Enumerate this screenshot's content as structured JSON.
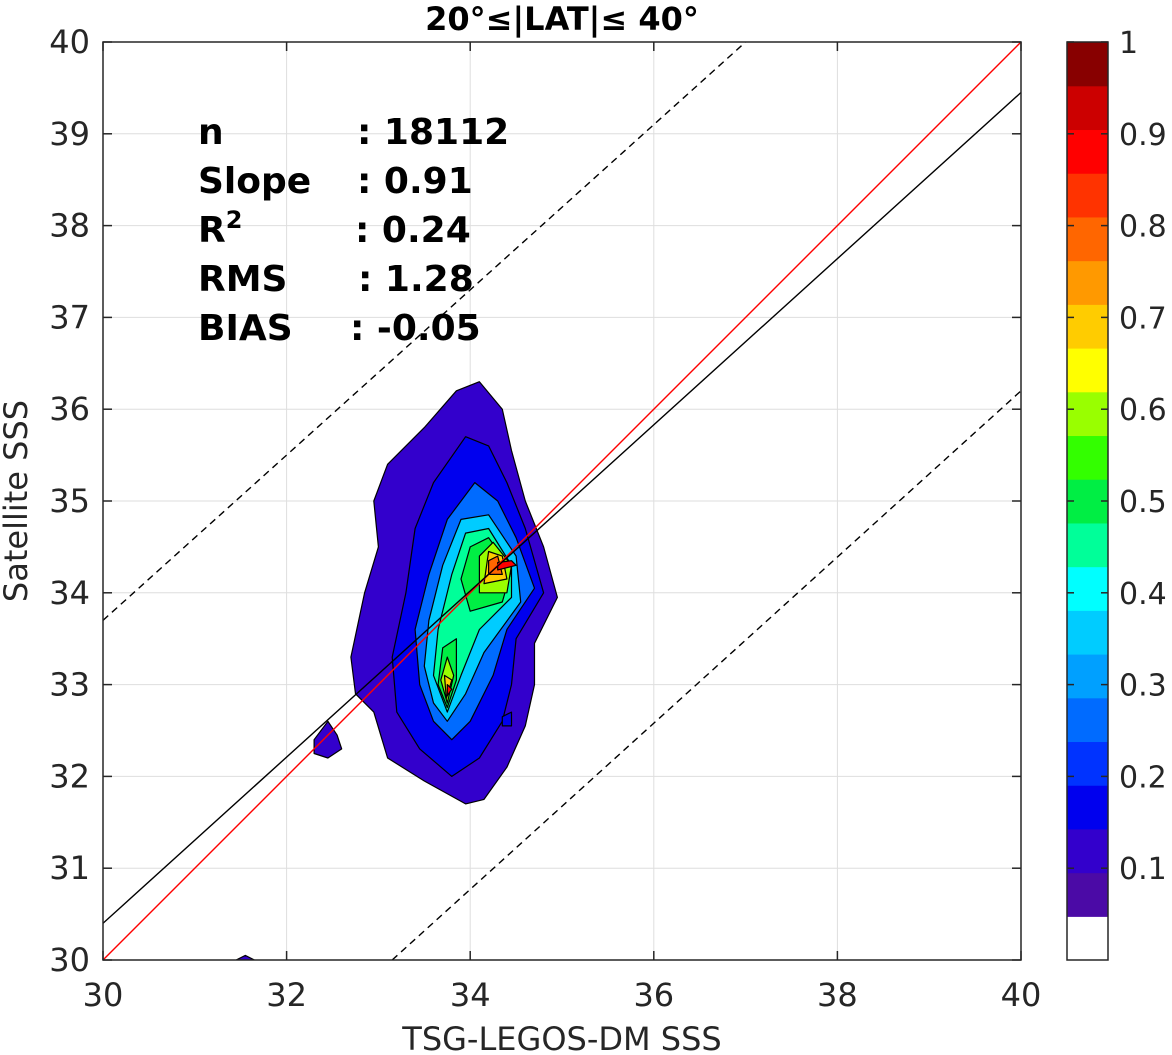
{
  "chart_data": {
    "type": "heatmap",
    "subtype": "filled-contour density scatter",
    "title": "20°≤|LAT|≤ 40°",
    "xlabel": "TSG-LEGOS-DM SSS",
    "ylabel": "Satellite SSS",
    "xlim": [
      30,
      40
    ],
    "ylim": [
      30,
      40
    ],
    "xticks": [
      30,
      32,
      34,
      36,
      38,
      40
    ],
    "yticks": [
      30,
      31,
      32,
      33,
      34,
      35,
      36,
      37,
      38,
      39,
      40
    ],
    "grid": true,
    "stats": [
      {
        "label": "n",
        "value": ": 18112"
      },
      {
        "label": "Slope",
        "value": ": 0.91"
      },
      {
        "label": "R",
        "sup": "2",
        "value": ": 0.24"
      },
      {
        "label": "RMS",
        "value": ": 1.28"
      },
      {
        "label": "BIAS",
        "value": ": -0.05"
      }
    ],
    "lines": [
      {
        "name": "1:1",
        "color": "#ff0000",
        "style": "solid",
        "points": [
          [
            30,
            30
          ],
          [
            40,
            40
          ]
        ]
      },
      {
        "name": "fit",
        "color": "#000000",
        "style": "solid",
        "points": [
          [
            30,
            30.4
          ],
          [
            40,
            39.45
          ]
        ]
      },
      {
        "name": "upper",
        "color": "#000000",
        "style": "dashed",
        "points": [
          [
            30,
            33.7
          ],
          [
            37,
            40
          ]
        ]
      },
      {
        "name": "lower",
        "color": "#000000",
        "style": "dashed",
        "points": [
          [
            33.15,
            30
          ],
          [
            40,
            36.2
          ]
        ]
      }
    ],
    "colorbar": {
      "range": [
        0,
        1
      ],
      "levels": 18,
      "tick_values": [
        0.1,
        0.2,
        0.3,
        0.4,
        0.5,
        0.6,
        0.7,
        0.8,
        0.9,
        1
      ],
      "tick_labels": [
        "0.1",
        "0.2",
        "0.3",
        "0.4",
        "0.5",
        "0.6",
        "0.7",
        "0.8",
        "0.9",
        "1"
      ],
      "colors": [
        "#ffffff",
        "#4b0aa6",
        "#3300cc",
        "#0000ee",
        "#0033ff",
        "#006bff",
        "#00a0ff",
        "#00ccff",
        "#00ffff",
        "#00ff99",
        "#00ee44",
        "#33ff00",
        "#99ff00",
        "#ffff00",
        "#ffcc00",
        "#ff9900",
        "#ff6600",
        "#ff3300",
        "#ff0000",
        "#cc0000",
        "#880000"
      ]
    },
    "density_regions": [
      {
        "level": 0.08,
        "points": [
          [
            33.95,
            31.7
          ],
          [
            34.15,
            31.75
          ],
          [
            34.4,
            32.1
          ],
          [
            34.6,
            32.55
          ],
          [
            34.7,
            33.0
          ],
          [
            34.7,
            33.45
          ],
          [
            34.95,
            33.95
          ],
          [
            34.8,
            34.5
          ],
          [
            34.6,
            35.0
          ],
          [
            34.45,
            35.55
          ],
          [
            34.35,
            36.0
          ],
          [
            34.1,
            36.3
          ],
          [
            33.85,
            36.2
          ],
          [
            33.5,
            35.8
          ],
          [
            33.1,
            35.4
          ],
          [
            32.95,
            35.0
          ],
          [
            33.0,
            34.5
          ],
          [
            32.85,
            34.0
          ],
          [
            32.7,
            33.3
          ],
          [
            32.75,
            32.9
          ],
          [
            32.95,
            32.7
          ],
          [
            33.1,
            32.2
          ],
          [
            33.5,
            31.95
          ]
        ]
      },
      {
        "level": 0.08,
        "points": [
          [
            32.3,
            32.4
          ],
          [
            32.45,
            32.6
          ],
          [
            32.55,
            32.45
          ],
          [
            32.6,
            32.3
          ],
          [
            32.45,
            32.2
          ],
          [
            32.3,
            32.25
          ]
        ]
      },
      {
        "level": 0.08,
        "points": [
          [
            31.45,
            30.0
          ],
          [
            31.55,
            30.05
          ],
          [
            31.65,
            30.0
          ]
        ]
      },
      {
        "level": 0.15,
        "points": [
          [
            33.8,
            32.0
          ],
          [
            34.1,
            32.2
          ],
          [
            34.35,
            32.6
          ],
          [
            34.45,
            33.0
          ],
          [
            34.5,
            33.5
          ],
          [
            34.8,
            34.0
          ],
          [
            34.6,
            34.7
          ],
          [
            34.4,
            35.2
          ],
          [
            34.2,
            35.6
          ],
          [
            33.95,
            35.7
          ],
          [
            33.6,
            35.2
          ],
          [
            33.4,
            34.7
          ],
          [
            33.3,
            34.0
          ],
          [
            33.15,
            33.3
          ],
          [
            33.2,
            32.7
          ],
          [
            33.45,
            32.3
          ]
        ]
      },
      {
        "level": 0.15,
        "points": [
          [
            34.35,
            32.65
          ],
          [
            34.45,
            32.7
          ],
          [
            34.45,
            32.55
          ],
          [
            34.35,
            32.55
          ]
        ]
      },
      {
        "level": 0.25,
        "points": [
          [
            33.8,
            32.4
          ],
          [
            34.0,
            32.6
          ],
          [
            34.25,
            33.1
          ],
          [
            34.4,
            33.6
          ],
          [
            34.7,
            34.05
          ],
          [
            34.5,
            34.6
          ],
          [
            34.3,
            35.0
          ],
          [
            34.05,
            35.2
          ],
          [
            33.75,
            34.8
          ],
          [
            33.55,
            34.2
          ],
          [
            33.4,
            33.6
          ],
          [
            33.45,
            33.0
          ],
          [
            33.6,
            32.6
          ]
        ]
      },
      {
        "level": 0.35,
        "points": [
          [
            33.75,
            32.6
          ],
          [
            33.95,
            32.9
          ],
          [
            34.15,
            33.35
          ],
          [
            34.55,
            33.9
          ],
          [
            34.5,
            34.4
          ],
          [
            34.2,
            34.85
          ],
          [
            33.9,
            34.8
          ],
          [
            33.7,
            34.3
          ],
          [
            33.55,
            33.7
          ],
          [
            33.5,
            33.2
          ],
          [
            33.6,
            32.8
          ]
        ]
      },
      {
        "level": 0.45,
        "points": [
          [
            33.75,
            32.7
          ],
          [
            33.9,
            33.1
          ],
          [
            34.1,
            33.6
          ],
          [
            34.45,
            33.95
          ],
          [
            34.45,
            34.3
          ],
          [
            34.2,
            34.7
          ],
          [
            33.95,
            34.65
          ],
          [
            33.8,
            34.2
          ],
          [
            33.65,
            33.6
          ],
          [
            33.6,
            33.1
          ]
        ]
      },
      {
        "level": 0.55,
        "points": [
          [
            34.0,
            33.8
          ],
          [
            34.35,
            33.9
          ],
          [
            34.45,
            34.25
          ],
          [
            34.2,
            34.6
          ],
          [
            34.0,
            34.5
          ],
          [
            33.9,
            34.15
          ]
        ]
      },
      {
        "level": 0.55,
        "points": [
          [
            33.75,
            32.75
          ],
          [
            33.85,
            33.05
          ],
          [
            33.85,
            33.5
          ],
          [
            33.7,
            33.4
          ],
          [
            33.65,
            33.0
          ]
        ]
      },
      {
        "level": 0.65,
        "points": [
          [
            34.1,
            34.0
          ],
          [
            34.4,
            34.0
          ],
          [
            34.45,
            34.3
          ],
          [
            34.25,
            34.55
          ],
          [
            34.1,
            34.4
          ]
        ]
      },
      {
        "level": 0.65,
        "points": [
          [
            33.75,
            32.8
          ],
          [
            33.82,
            33.1
          ],
          [
            33.75,
            33.3
          ],
          [
            33.68,
            33.05
          ]
        ]
      },
      {
        "level": 0.75,
        "points": [
          [
            34.15,
            34.1
          ],
          [
            34.4,
            34.15
          ],
          [
            34.35,
            34.4
          ],
          [
            34.2,
            34.45
          ]
        ]
      },
      {
        "level": 0.75,
        "points": [
          [
            33.74,
            32.85
          ],
          [
            33.8,
            33.05
          ],
          [
            33.72,
            33.1
          ]
        ]
      },
      {
        "level": 0.85,
        "points": [
          [
            34.2,
            34.2
          ],
          [
            34.35,
            34.2
          ],
          [
            34.3,
            34.4
          ],
          [
            34.2,
            34.35
          ]
        ]
      },
      {
        "level": 0.95,
        "points": [
          [
            34.3,
            34.25
          ],
          [
            34.5,
            34.3
          ],
          [
            34.45,
            34.35
          ],
          [
            34.3,
            34.33
          ]
        ]
      },
      {
        "level": 0.95,
        "points": [
          [
            33.75,
            32.88
          ],
          [
            33.8,
            32.95
          ],
          [
            33.75,
            33.0
          ]
        ]
      }
    ]
  }
}
